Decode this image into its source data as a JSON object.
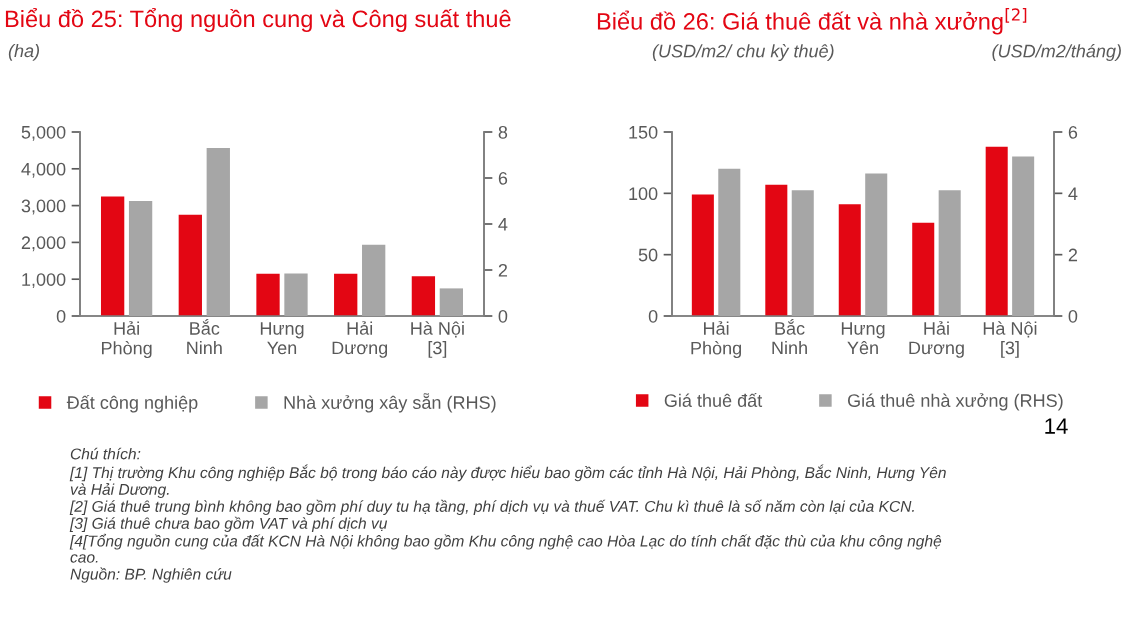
{
  "chart_data": [
    {
      "type": "bar",
      "title": "Biểu đồ 25: Tổng nguồn cung và Công suất thuê",
      "ylabel": "(ha)",
      "categories": [
        "Hải\nPhòng",
        "Bắc\nNinh",
        "Hưng\nYen",
        "Hải\nDương",
        "Hà Nội\n[3]"
      ],
      "series": [
        {
          "name": "Đất công nghiệp",
          "color": "#e30613",
          "values": [
            3250,
            2750,
            1150,
            1150,
            1080
          ]
        },
        {
          "name": "Nhà xưởng xây sẵn (RHS)",
          "color": "#a6a6a6",
          "axis": "y2",
          "values": [
            5.0,
            7.3,
            1.85,
            3.1,
            1.2
          ]
        }
      ],
      "ylim": [
        0,
        5000
      ],
      "yticks": [
        {
          "value": 0,
          "label": "0"
        },
        {
          "value": 1000,
          "label": "1,000"
        },
        {
          "value": 2000,
          "label": "2,000"
        },
        {
          "value": 3000,
          "label": "3,000"
        },
        {
          "value": 4000,
          "label": "4,000"
        },
        {
          "value": 5000,
          "label": "5,000"
        }
      ],
      "y2lim": [
        0,
        8
      ],
      "y2ticks": [
        0,
        2,
        4,
        6,
        8
      ],
      "grid": false,
      "legend": "bottom",
      "annotations": [
        "Chú thích:",
        "[1] Thị trường Khu công nghiệp Bắc bộ trong báo cáo này được hiểu bao gồm các tỉnh Hà Nội, Hải Phòng, Bắc Ninh, Hưng Yên\nvà Hải Dương.",
        "[2] Giá thuê trung bình không bao gồm phí duy tu hạ tầng, phí dịch vụ và thuế VAT. Chu kì thuê là số năm còn lại của KCN.",
        "[3] Giá thuê chưa bao gồm VAT và phí dịch vụ",
        "[4[Tổng nguồn cung của đất KCN Hà Nội không bao gồm Khu công nghệ cao Hòa Lạc do tính chất đặc thù của khu công nghệ\ncao.",
        "Nguồn: BP. Nghiên cứu"
      ]
    },
    {
      "type": "bar",
      "title": "Biểu đồ 26: Giá thuê đất và nhà xưởng$^{[2]}$",
      "ylabel": "(USD/m2/ chu kỳ thuê)",
      "y2label": "(USD/m2/tháng)",
      "categories": [
        "Hải\nPhòng",
        "Bắc\nNinh",
        "Hưng\nYên",
        "Hải\nDương",
        "Hà Nội\n[3]"
      ],
      "series": [
        {
          "name": "Giá thuê đất",
          "color": "#e30613",
          "values": [
            99,
            107,
            91,
            76,
            138
          ]
        },
        {
          "name": "Giá thuê nhà xưởng (RHS)",
          "color": "#a6a6a6",
          "axis": "y2",
          "values": [
            4.8,
            4.1,
            4.65,
            4.1,
            5.2
          ]
        }
      ],
      "ylim": [
        0,
        150
      ],
      "yticks": [
        0,
        50,
        100,
        150
      ],
      "y2lim": [
        0,
        6
      ],
      "y2ticks": [
        0,
        2,
        4,
        6
      ],
      "grid": false,
      "legend": "bottom",
      "annotations": [
        "14"
      ]
    }
  ]
}
